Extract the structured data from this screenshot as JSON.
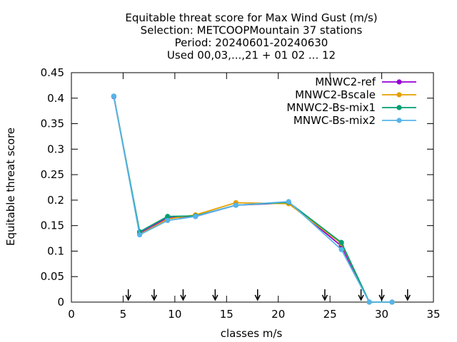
{
  "chart_data": {
    "type": "line",
    "title_lines": [
      "Equitable threat score  for Max Wind Gust (m/s)",
      "Selection: METCOOPMountain     37 stations",
      "Period: 20240601-20240630",
      "Used 00,03,...,21 + 01 02 ... 12"
    ],
    "xlabel": "classes m/s",
    "ylabel": "Equitable threat score",
    "xlim": [
      0,
      35
    ],
    "ylim": [
      0,
      0.45
    ],
    "xticks": [
      0,
      5,
      10,
      15,
      20,
      25,
      30,
      35
    ],
    "xtick_labels": [
      "0",
      "5",
      "10",
      "15",
      "20",
      "25",
      "30",
      "35"
    ],
    "yticks": [
      0,
      0.05,
      0.1,
      0.15,
      0.2,
      0.25,
      0.3,
      0.35,
      0.4,
      0.45
    ],
    "ytick_labels": [
      "0",
      "0.05",
      "0.1",
      "0.15",
      "0.2",
      "0.25",
      "0.3",
      "0.35",
      "0.4",
      "0.45"
    ],
    "legend_position": "top-right",
    "threshold_arrows_x": [
      5.5,
      8,
      10.8,
      13.9,
      18,
      24.5,
      28,
      30,
      32.5
    ],
    "series": [
      {
        "name": "MNWC2-ref",
        "color": "#9400d3",
        "x": [
          4.1,
          6.6,
          9.3,
          12,
          15.9,
          21,
          26.1,
          28.8,
          31
        ],
        "y": [
          0.403,
          0.135,
          0.165,
          0.168,
          0.19,
          0.195,
          0.11,
          0.0,
          0.0
        ]
      },
      {
        "name": "MNWC2-Bscale",
        "color": "#e69f00",
        "x": [
          4.1,
          6.6,
          9.3,
          12,
          15.9,
          21,
          26.1,
          28.8,
          31
        ],
        "y": [
          0.404,
          0.133,
          0.163,
          0.171,
          0.195,
          0.193,
          0.115,
          0.0,
          0.0
        ]
      },
      {
        "name": "MNWC2-Bs-mix1",
        "color": "#009e73",
        "x": [
          4.1,
          6.6,
          9.3,
          12,
          15.9,
          21,
          26.1,
          28.8,
          31
        ],
        "y": [
          0.404,
          0.138,
          0.168,
          0.169,
          0.19,
          0.196,
          0.117,
          0.0,
          0.0
        ]
      },
      {
        "name": "MNWC-Bs-mix2",
        "color": "#56b4e9",
        "x": [
          4.1,
          6.6,
          9.3,
          12,
          15.9,
          21,
          26.1,
          28.8,
          31
        ],
        "y": [
          0.404,
          0.132,
          0.16,
          0.168,
          0.19,
          0.197,
          0.103,
          0.0,
          0.0
        ]
      }
    ]
  }
}
